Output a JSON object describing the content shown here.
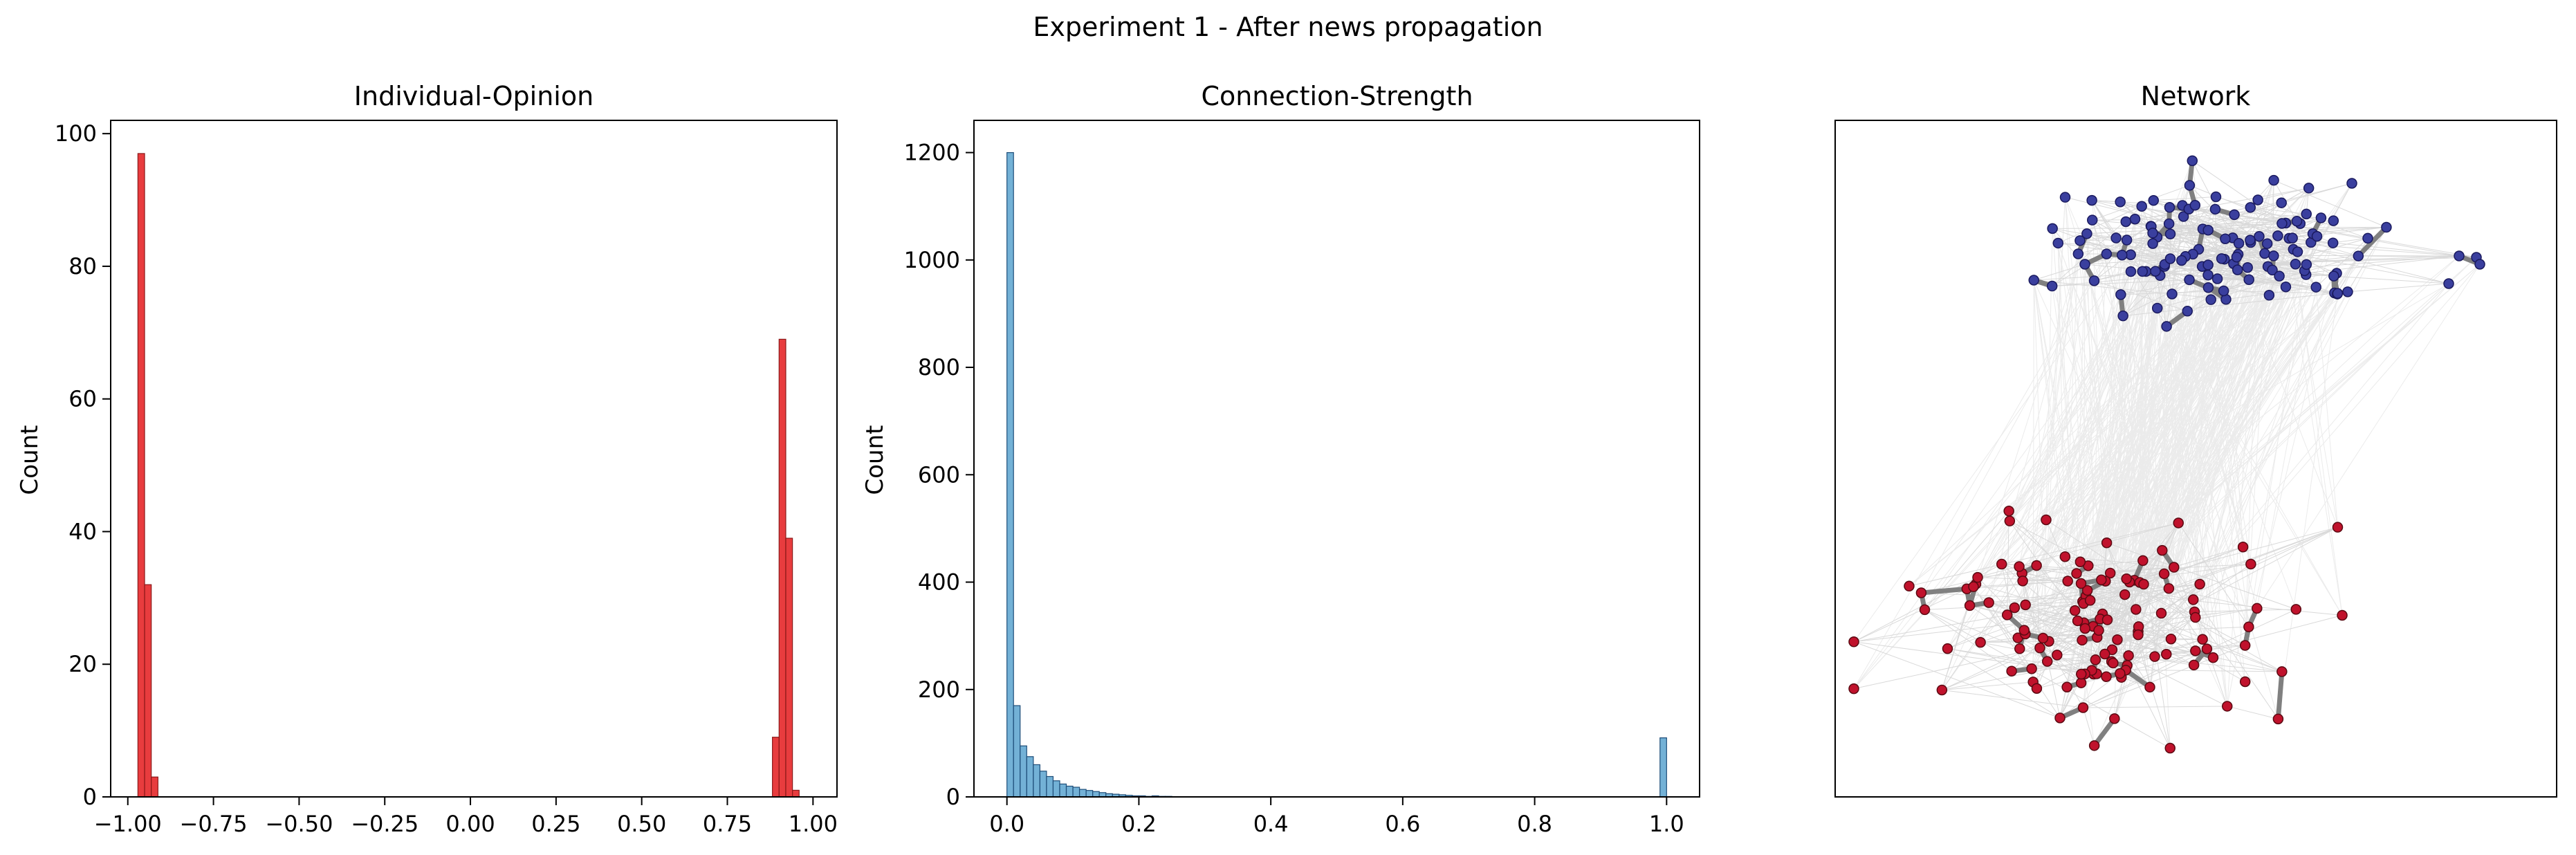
{
  "figure": {
    "suptitle": "Experiment 1 - After news propagation"
  },
  "chart_data": [
    {
      "type": "bar",
      "title": "Individual-Opinion",
      "xlabel": "",
      "ylabel": "Count",
      "xlim": [
        -1.05,
        1.07
      ],
      "ylim": [
        0,
        102
      ],
      "x_ticks": [
        -1.0,
        -0.75,
        -0.5,
        -0.25,
        0.0,
        0.25,
        0.5,
        0.75,
        1.0
      ],
      "x_tick_labels": [
        "−1.00",
        "−0.75",
        "−0.50",
        "−0.25",
        "0.00",
        "0.25",
        "0.50",
        "0.75",
        "1.00"
      ],
      "y_ticks": [
        0,
        20,
        40,
        60,
        80,
        100
      ],
      "y_tick_labels": [
        "0",
        "20",
        "40",
        "60",
        "80",
        "100"
      ],
      "bin_width": 0.0195,
      "bins": [
        {
          "x": -0.9705,
          "count": 97
        },
        {
          "x": -0.951,
          "count": 32
        },
        {
          "x": -0.9315,
          "count": 3
        },
        {
          "x": 0.8815,
          "count": 9
        },
        {
          "x": 0.901,
          "count": 69
        },
        {
          "x": 0.9205,
          "count": 39
        },
        {
          "x": 0.94,
          "count": 1
        }
      ],
      "color": "#e41a1c",
      "edge_color": "#8b1a1a"
    },
    {
      "type": "bar",
      "title": "Connection-Strength",
      "xlabel": "",
      "ylabel": "Count",
      "xlim": [
        -0.05,
        1.05
      ],
      "ylim": [
        0,
        1260
      ],
      "x_ticks": [
        0.0,
        0.2,
        0.4,
        0.6,
        0.8,
        1.0
      ],
      "x_tick_labels": [
        "0.0",
        "0.2",
        "0.4",
        "0.6",
        "0.8",
        "1.0"
      ],
      "y_ticks": [
        0,
        200,
        400,
        600,
        800,
        1000,
        1200
      ],
      "y_tick_labels": [
        "0",
        "200",
        "400",
        "600",
        "800",
        "1000",
        "1200"
      ],
      "bin_width": 0.01,
      "bins": [
        {
          "x": 0.0,
          "count": 1200
        },
        {
          "x": 0.01,
          "count": 170
        },
        {
          "x": 0.02,
          "count": 95
        },
        {
          "x": 0.03,
          "count": 75
        },
        {
          "x": 0.04,
          "count": 60
        },
        {
          "x": 0.05,
          "count": 48
        },
        {
          "x": 0.06,
          "count": 38
        },
        {
          "x": 0.07,
          "count": 30
        },
        {
          "x": 0.08,
          "count": 24
        },
        {
          "x": 0.09,
          "count": 20
        },
        {
          "x": 0.1,
          "count": 18
        },
        {
          "x": 0.11,
          "count": 14
        },
        {
          "x": 0.12,
          "count": 12
        },
        {
          "x": 0.13,
          "count": 10
        },
        {
          "x": 0.14,
          "count": 8
        },
        {
          "x": 0.15,
          "count": 6
        },
        {
          "x": 0.16,
          "count": 5
        },
        {
          "x": 0.17,
          "count": 4
        },
        {
          "x": 0.18,
          "count": 3
        },
        {
          "x": 0.19,
          "count": 2
        },
        {
          "x": 0.2,
          "count": 2
        },
        {
          "x": 0.21,
          "count": 1
        },
        {
          "x": 0.22,
          "count": 2
        },
        {
          "x": 0.23,
          "count": 1
        },
        {
          "x": 0.24,
          "count": 1
        },
        {
          "x": 0.99,
          "count": 110
        }
      ],
      "color": "#5ba3cf",
      "edge_color": "#1f4e79"
    }
  ],
  "network": {
    "title": "Network",
    "node_groups": [
      {
        "group": "top",
        "color": "#3a3f9e",
        "edge_color": "#1a1a5e",
        "count": 130
      },
      {
        "group": "bottom",
        "color": "#c0122c",
        "edge_color": "#5a0a12",
        "count": 130
      }
    ],
    "strong_edge_color": "#808080",
    "weak_edge_color": "#d9d9d9",
    "cross_edge_color": "#ebebeb"
  }
}
